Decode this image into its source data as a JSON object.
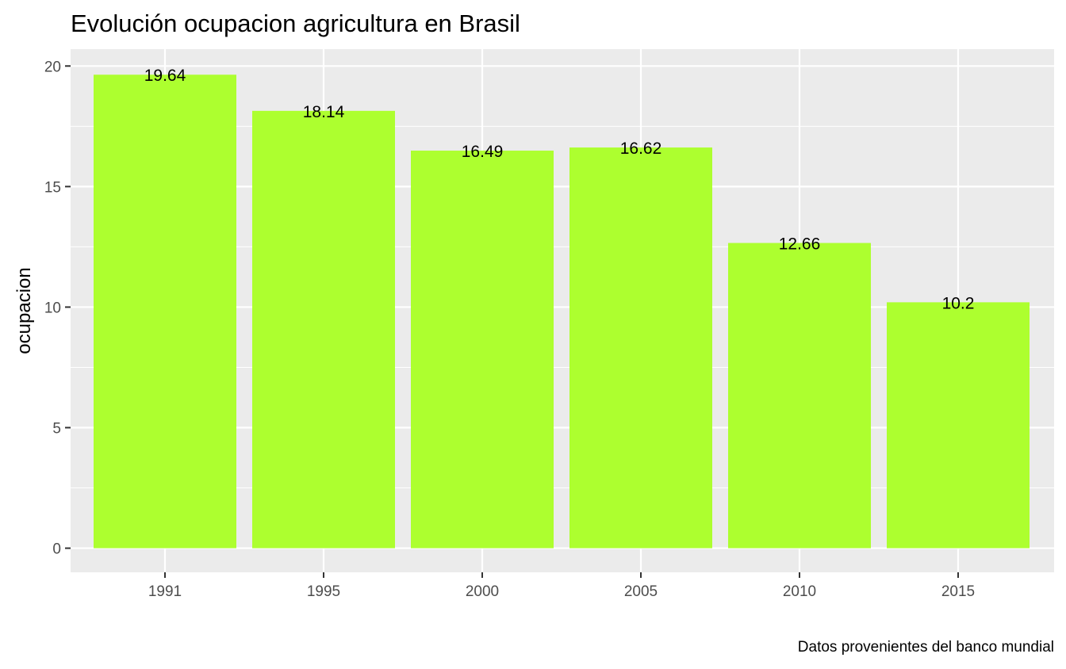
{
  "chart_data": {
    "type": "bar",
    "title": "Evolución ocupacion agricultura en Brasil",
    "xlabel": "",
    "ylabel": "ocupacion",
    "caption": "Datos provenientes del banco mundial",
    "categories": [
      "1991",
      "1995",
      "2000",
      "2005",
      "2010",
      "2015"
    ],
    "values": [
      19.64,
      18.14,
      16.49,
      16.62,
      12.66,
      10.2
    ],
    "data_labels": [
      "19.64",
      "18.14",
      "16.49",
      "16.62",
      "12.66",
      "10.2"
    ],
    "y_ticks": [
      0,
      5,
      10,
      15,
      20
    ],
    "ylim": [
      -1,
      20.7
    ],
    "bar_color": "#ADFF2F",
    "panel_background": "#EBEBEB",
    "grid": true,
    "legend": "none"
  }
}
